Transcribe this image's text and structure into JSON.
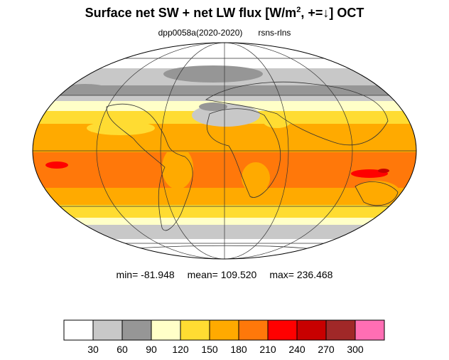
{
  "title": {
    "prefix": "Surface net SW + net LW flux [W/m",
    "superscript": "2",
    "suffix": ", +=↓]  OCT"
  },
  "subtitle": {
    "experiment": "dpp0058a(2020-2020)",
    "variable": "rsns-rlns"
  },
  "stats": {
    "min": "min= -81.948",
    "mean": "mean= 109.520",
    "max": "max= 236.468"
  },
  "colorbar": {
    "colors": [
      "#ffffff",
      "#c8c8c8",
      "#969696",
      "#ffffc8",
      "#ffdc32",
      "#ffaa00",
      "#ff780a",
      "#ff0000",
      "#c80000",
      "#a02828",
      "#ff6eb4"
    ],
    "labels": [
      "30",
      "60",
      "90",
      "120",
      "150",
      "180",
      "210",
      "240",
      "270",
      "300"
    ]
  },
  "map": {
    "projection": "mollweide",
    "graticule_lon_step_deg": 60,
    "graticule_lat_step_deg": 30
  }
}
